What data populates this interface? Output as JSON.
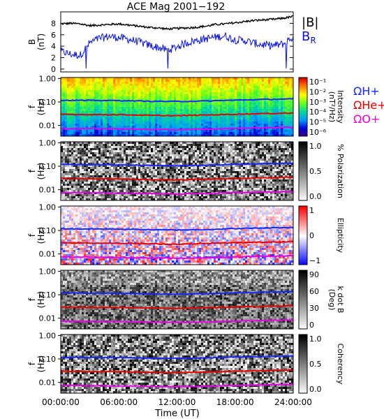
{
  "title": "ACE Mag 2001−192",
  "xaxis": {
    "label": "Time (UT)",
    "ticks": [
      "00:00:00",
      "06:00:00",
      "12:00:00",
      "18:00:00",
      "24:00:00"
    ],
    "range_hours": [
      0,
      24
    ]
  },
  "freq_axis": {
    "label_f": "f",
    "label_unit": "(Hz)",
    "ticks": [
      "1.00",
      "0.10",
      "0.01"
    ],
    "range_hz": [
      0.0035,
      1.1
    ],
    "scale": "log"
  },
  "colors": {
    "btotal": "#000000",
    "bradial": "#0a14d8",
    "h_plus": "#1428ff",
    "he_plus": "#e60000",
    "o_plus": "#e600e6"
  },
  "chart_data": [
    {
      "type": "line",
      "name": "field-magnitude",
      "ylabel_top": "B",
      "ylabel_unit": "(nT)",
      "ylim": [
        -0.5,
        10
      ],
      "yticks": [
        "0",
        "2",
        "4",
        "6",
        "8"
      ],
      "legend": [
        "|B|",
        "B",
        "R"
      ],
      "series": [
        {
          "name": "|B|",
          "x": [
            0,
            1,
            2,
            3,
            4,
            5,
            6,
            7,
            8,
            9,
            10,
            11,
            12,
            13,
            14,
            15,
            16,
            17,
            18,
            19,
            20,
            21,
            22,
            23,
            24
          ],
          "values": [
            7.9,
            8.0,
            7.9,
            7.6,
            7.7,
            7.8,
            7.9,
            7.7,
            7.5,
            7.3,
            7.2,
            7.0,
            7.1,
            7.2,
            7.3,
            7.5,
            7.8,
            7.9,
            8.1,
            8.3,
            8.5,
            8.6,
            8.7,
            8.9,
            9.2
          ]
        },
        {
          "name": "BR",
          "x": [
            0,
            1,
            2,
            3,
            4,
            5,
            6,
            7,
            8,
            9,
            10,
            11,
            12,
            13,
            14,
            15,
            16,
            17,
            18,
            19,
            20,
            21,
            22,
            23,
            24
          ],
          "values": [
            3.1,
            2.6,
            2.4,
            4.6,
            5.4,
            5.7,
            5.5,
            5.2,
            4.8,
            4.2,
            3.8,
            3.3,
            3.9,
            4.6,
            5.0,
            5.3,
            5.6,
            5.8,
            5.1,
            5.0,
            4.5,
            4.2,
            4.1,
            4.4,
            5.6
          ]
        }
      ]
    },
    {
      "type": "heatmap",
      "name": "power-spectrum",
      "colorbar": {
        "label": "Intensity",
        "unit": "(nT²/Hz)",
        "ticks": [
          "10⁻¹",
          "10⁻²",
          "10⁻³",
          "10⁻⁴",
          "10⁻⁵",
          "10⁻⁶"
        ],
        "scale": "rainbow"
      },
      "legend": [
        "ΩH+",
        "ΩHe+",
        "ΩO+"
      ]
    },
    {
      "type": "heatmap",
      "name": "polarization",
      "colorbar": {
        "label": "% Polarization",
        "ticks": [
          "1.0",
          "0.5",
          "0.0"
        ],
        "scale": "gray"
      }
    },
    {
      "type": "heatmap",
      "name": "ellipticity",
      "colorbar": {
        "label": "Ellipticity",
        "ticks": [
          "1",
          "0",
          "−1"
        ],
        "scale": "blue-white-red"
      }
    },
    {
      "type": "heatmap",
      "name": "k-dot-b",
      "colorbar": {
        "label": "k dot B",
        "unit": "(Deg)",
        "ticks": [
          "90",
          "60",
          "30",
          "0"
        ],
        "scale": "gray"
      }
    },
    {
      "type": "heatmap",
      "name": "coherency",
      "colorbar": {
        "label": "Coherency",
        "ticks": [
          "1.0",
          "0.5",
          "0.0"
        ],
        "scale": "gray"
      }
    }
  ],
  "gyrofrequencies": {
    "x": [
      0,
      3,
      6,
      9,
      12,
      15,
      18,
      21,
      24
    ],
    "h_plus": [
      0.118,
      0.116,
      0.115,
      0.108,
      0.105,
      0.11,
      0.12,
      0.128,
      0.135
    ],
    "he_plus": [
      0.03,
      0.029,
      0.029,
      0.027,
      0.026,
      0.028,
      0.03,
      0.032,
      0.034
    ],
    "o_plus": [
      0.0074,
      0.0073,
      0.0072,
      0.0068,
      0.0066,
      0.0069,
      0.0075,
      0.008,
      0.0084
    ]
  }
}
